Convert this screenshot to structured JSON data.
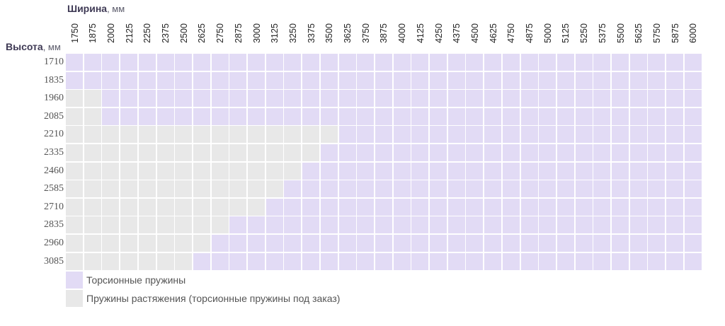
{
  "colors": {
    "torsion": "#e2dbf5",
    "extension": "#e8e8e8"
  },
  "chart_data": {
    "type": "heatmap",
    "xlabel_bold": "Ширина",
    "xlabel_unit": ", мм",
    "ylabel_bold": "Высота",
    "ylabel_unit": ", мм",
    "widths": [
      "1750",
      "1875",
      "2000",
      "2125",
      "2250",
      "2375",
      "2500",
      "2625",
      "2750",
      "2875",
      "3000",
      "3125",
      "3250",
      "3375",
      "3500",
      "3625",
      "3750",
      "3875",
      "4000",
      "4125",
      "4250",
      "4375",
      "4500",
      "4625",
      "4750",
      "4875",
      "5000",
      "5125",
      "5250",
      "5375",
      "5500",
      "5625",
      "5750",
      "5875",
      "6000"
    ],
    "heights": [
      "1710",
      "1835",
      "1960",
      "2085",
      "2210",
      "2335",
      "2460",
      "2585",
      "2710",
      "2835",
      "2960",
      "3085"
    ],
    "torsion_min_width": [
      "1750",
      "1750",
      "2000",
      "2000",
      "3625",
      "3500",
      "3375",
      "3250",
      "3125",
      "2875",
      "2750",
      "2625"
    ],
    "legend": [
      {
        "key": "torsion",
        "label": "Торсионные пружины"
      },
      {
        "key": "extension",
        "label": "Пружины растяжения (торсионные пружины под заказ)"
      }
    ]
  }
}
